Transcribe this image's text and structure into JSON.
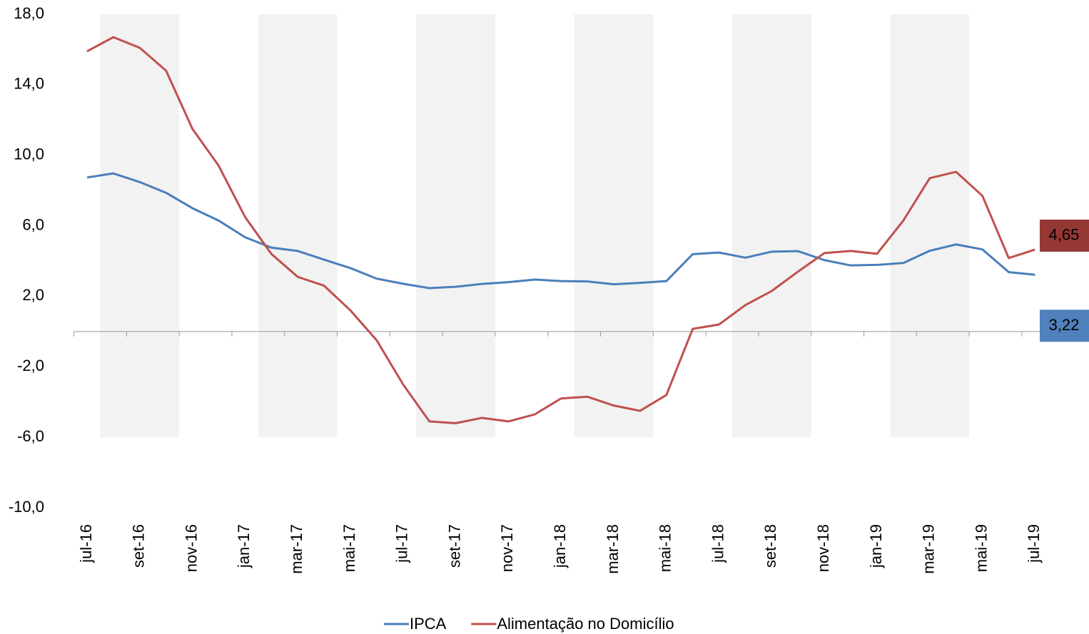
{
  "chart_data": {
    "type": "line",
    "categories": [
      "jul-16",
      null,
      "set-16",
      null,
      "nov-16",
      null,
      "jan-17",
      null,
      "mar-17",
      null,
      "mai-17",
      null,
      "jul-17",
      null,
      "set-17",
      null,
      "nov-17",
      null,
      "jan-18",
      null,
      "mar-18",
      null,
      "mai-18",
      null,
      "jul-18",
      null,
      "set-18",
      null,
      "nov-18",
      null,
      "jan-19",
      null,
      "mar-19",
      null,
      "mai-19",
      null,
      "jul-19"
    ],
    "series": [
      {
        "name": "IPCA",
        "color": "#4a7ebb",
        "values": [
          8.74,
          8.97,
          8.48,
          7.87,
          7.0,
          6.29,
          5.35,
          4.76,
          4.57,
          4.08,
          3.6,
          3.0,
          2.71,
          2.46,
          2.54,
          2.7,
          2.8,
          2.95,
          2.86,
          2.84,
          2.68,
          2.76,
          2.86,
          4.39,
          4.48,
          4.19,
          4.53,
          4.56,
          4.05,
          3.75,
          3.78,
          3.89,
          4.58,
          4.94,
          4.66,
          3.37,
          3.22
        ],
        "value_labels": [
          null,
          null,
          null,
          null,
          null,
          null,
          null,
          null,
          null,
          null,
          null,
          null,
          null,
          null,
          null,
          null,
          null,
          null,
          null,
          null,
          null,
          null,
          null,
          null,
          null,
          null,
          null,
          null,
          null,
          null,
          null,
          null,
          null,
          null,
          null,
          null,
          "3,22"
        ],
        "label_color": "#4f81bd"
      },
      {
        "name": "Alimentação no Domicílio",
        "color": "#c0504d",
        "values": [
          15.9,
          16.7,
          16.1,
          14.8,
          11.5,
          9.4,
          6.5,
          4.4,
          3.1,
          2.6,
          1.2,
          -0.5,
          -3.0,
          -5.1,
          -5.2,
          -4.9,
          -5.1,
          -4.7,
          -3.8,
          -3.7,
          -4.2,
          -4.5,
          -3.6,
          0.15,
          0.4,
          1.5,
          2.3,
          3.4,
          4.45,
          4.57,
          4.41,
          6.3,
          8.7,
          9.06,
          7.7,
          4.17,
          4.65
        ],
        "value_labels": [
          null,
          null,
          null,
          null,
          null,
          null,
          null,
          null,
          null,
          null,
          null,
          null,
          null,
          null,
          null,
          null,
          null,
          null,
          null,
          null,
          null,
          null,
          null,
          null,
          null,
          null,
          null,
          null,
          null,
          null,
          null,
          null,
          null,
          null,
          null,
          null,
          "4,65"
        ],
        "label_color": "#953735"
      }
    ],
    "ylim": [
      -10,
      18
    ],
    "yticks": [
      {
        "value": 18,
        "label": "18,0"
      },
      {
        "value": 14,
        "label": "14,0"
      },
      {
        "value": 10,
        "label": "10,0"
      },
      {
        "value": 6,
        "label": "6,0"
      },
      {
        "value": 2,
        "label": "2,0"
      },
      {
        "value": -2,
        "label": "-2,0"
      },
      {
        "value": -6,
        "label": "-6,0"
      },
      {
        "value": -10,
        "label": "-10,0"
      }
    ],
    "grid": false,
    "legend": "bottom"
  }
}
